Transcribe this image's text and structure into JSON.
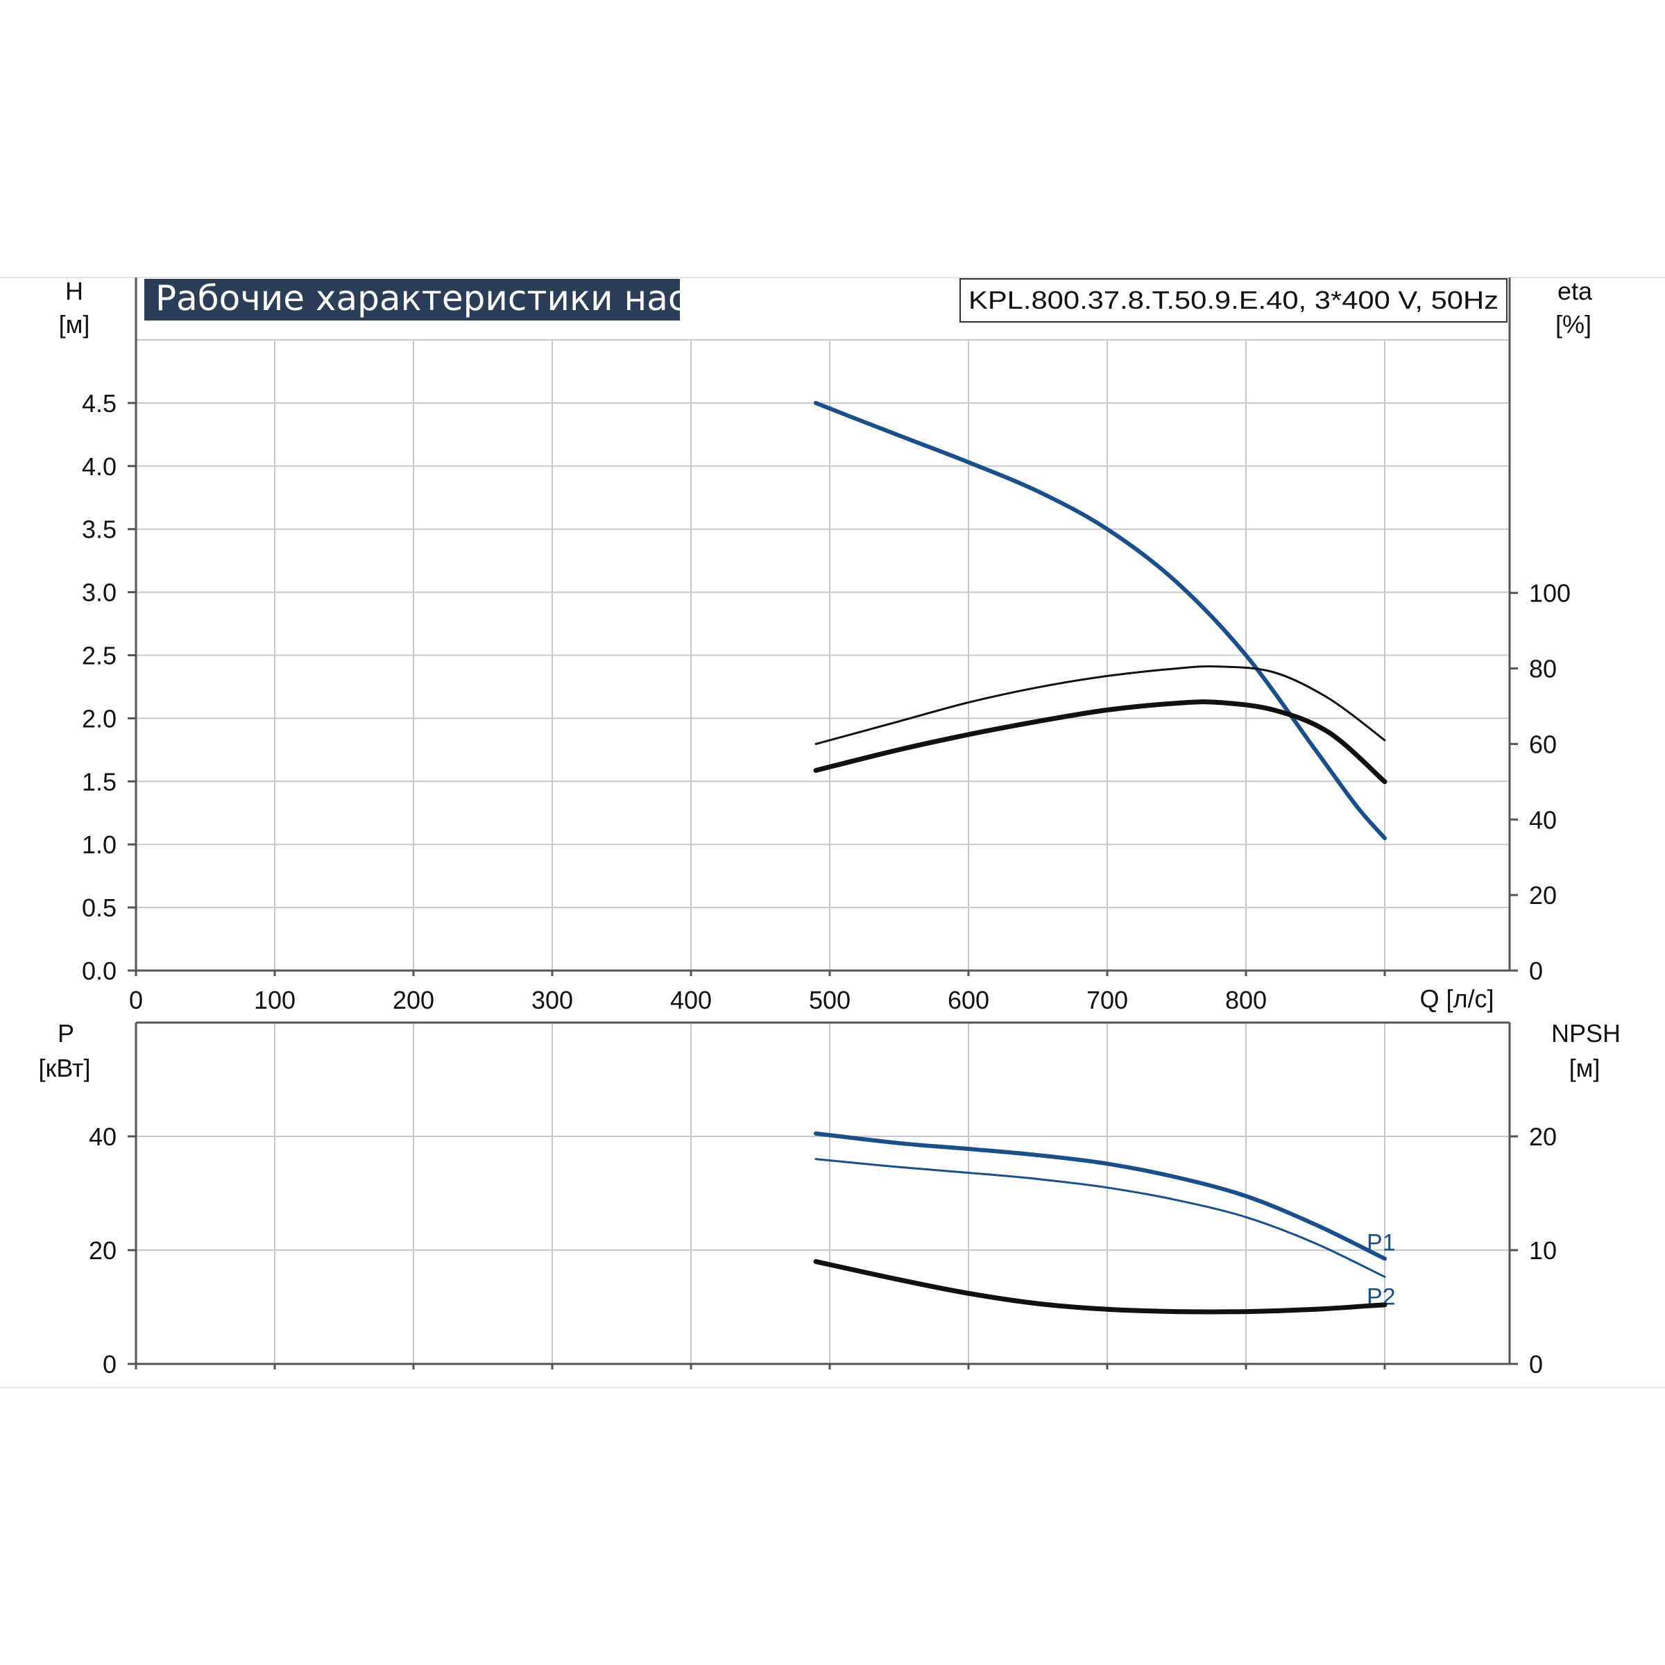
{
  "colors": {
    "grid": "#c8c8c8",
    "axis": "#555555",
    "head_curve": "#1a4f8a",
    "efficiency_curve": "#111111",
    "power_curve": "#1a4f8a",
    "npsh_curve": "#111111",
    "title_banner_bg": "#2c3e57",
    "band_line": "#dcdcdc"
  },
  "chart_data": [
    {
      "type": "line",
      "title": "Рабочие характеристики насоса",
      "model": "KPL.800.37.8.T.50.9.E.40, 3*400 V, 50Hz",
      "xlabel": "Q [л/с]",
      "xlim": [
        0,
        990
      ],
      "x_ticks": [
        "0",
        "100",
        "200",
        "300",
        "400",
        "500",
        "600",
        "700",
        "800"
      ],
      "y_left": {
        "symbol": "H",
        "unit": "[м]",
        "lim": [
          0,
          5
        ],
        "ticks": [
          "0.0",
          "0.5",
          "1.0",
          "1.5",
          "2.0",
          "2.5",
          "3.0",
          "3.5",
          "4.0",
          "4.5"
        ]
      },
      "y_right": {
        "symbol": "eta",
        "unit": "[%]",
        "lim": [
          0,
          167
        ],
        "ticks": [
          "0",
          "20",
          "40",
          "60",
          "80",
          "100"
        ]
      },
      "grid": true,
      "series": [
        {
          "axis": "left",
          "width": 6,
          "x": [
            490,
            520,
            560,
            600,
            650,
            700,
            750,
            800,
            850,
            880,
            900
          ],
          "y": [
            4.5,
            4.37,
            4.2,
            4.03,
            3.8,
            3.5,
            3.08,
            2.5,
            1.75,
            1.3,
            1.05
          ]
        },
        {
          "axis": "right",
          "width": 3,
          "x": [
            490,
            550,
            600,
            650,
            700,
            750,
            780,
            820,
            860,
            900
          ],
          "y": [
            60,
            66,
            71,
            75,
            78,
            80,
            80.5,
            79,
            72,
            61
          ]
        },
        {
          "axis": "right",
          "width": 7,
          "x": [
            490,
            550,
            600,
            650,
            700,
            750,
            780,
            820,
            860,
            900
          ],
          "y": [
            53,
            58.5,
            62.5,
            66,
            69,
            70.8,
            71,
            69,
            63,
            50
          ]
        }
      ]
    },
    {
      "type": "line",
      "xlim": [
        0,
        990
      ],
      "y_left": {
        "symbol": "P",
        "unit": "[кВт]",
        "lim": [
          0,
          60
        ],
        "ticks": [
          "0",
          "20",
          "40"
        ]
      },
      "y_right": {
        "symbol": "NPSH",
        "unit": "[м]",
        "lim": [
          0,
          30
        ],
        "ticks": [
          "0",
          "10",
          "20"
        ]
      },
      "grid": true,
      "series": [
        {
          "name": "P1",
          "axis": "left",
          "width": 6,
          "x": [
            490,
            550,
            600,
            650,
            700,
            750,
            800,
            850,
            900
          ],
          "y": [
            40.5,
            38.8,
            37.8,
            36.7,
            35.2,
            32.8,
            29.5,
            24.5,
            18.5
          ]
        },
        {
          "name": "P2",
          "axis": "left",
          "width": 3,
          "x": [
            490,
            550,
            600,
            650,
            700,
            750,
            800,
            850,
            900
          ],
          "y": [
            36.0,
            34.6,
            33.6,
            32.5,
            31.0,
            28.8,
            25.8,
            21.2,
            15.3
          ]
        },
        {
          "axis": "right",
          "width": 7,
          "x": [
            490,
            550,
            600,
            650,
            700,
            750,
            800,
            850,
            900
          ],
          "y": [
            9.0,
            7.4,
            6.2,
            5.3,
            4.8,
            4.6,
            4.6,
            4.8,
            5.2
          ]
        }
      ]
    }
  ]
}
